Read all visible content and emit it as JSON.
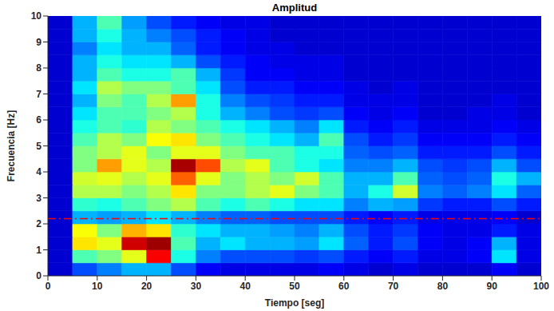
{
  "chart_data": {
    "type": "heatmap",
    "title": "Amplitud",
    "x_label": "Tiempo [seg]",
    "y_label": "Frecuencia [Hz]",
    "xlim": [
      0,
      100
    ],
    "ylim": [
      0,
      10
    ],
    "xticks": [
      0,
      10,
      20,
      30,
      40,
      50,
      60,
      70,
      80,
      90,
      100
    ],
    "yticks": [
      0,
      1,
      2,
      3,
      4,
      5,
      6,
      7,
      8,
      9,
      10
    ],
    "grid": false,
    "color": "jet",
    "zlim": [
      0,
      1
    ],
    "x_bins": [
      0,
      5,
      10,
      15,
      20,
      25,
      30,
      35,
      40,
      45,
      50,
      55,
      60,
      65,
      70,
      75,
      80,
      85,
      90,
      95,
      100
    ],
    "y_bins": [
      0,
      0.5,
      1,
      1.5,
      2,
      2.5,
      3,
      3.5,
      4,
      4.5,
      5,
      5.5,
      6,
      6.5,
      7,
      7.5,
      8,
      8.5,
      9,
      9.5,
      10
    ],
    "cells": [
      [
        0.08,
        0.2,
        0.25,
        0.3,
        0.3,
        0.2,
        0.12,
        0.1,
        0.1,
        0.1,
        0.1,
        0.12,
        0.1,
        0.08,
        0.1,
        0.08,
        0.08,
        0.08,
        0.12,
        0.08
      ],
      [
        0.08,
        0.45,
        0.5,
        0.6,
        0.88,
        0.4,
        0.25,
        0.2,
        0.2,
        0.2,
        0.18,
        0.2,
        0.15,
        0.12,
        0.15,
        0.1,
        0.1,
        0.12,
        0.35,
        0.1
      ],
      [
        0.08,
        0.65,
        0.6,
        0.92,
        0.97,
        0.45,
        0.3,
        0.35,
        0.3,
        0.3,
        0.28,
        0.35,
        0.22,
        0.15,
        0.2,
        0.12,
        0.1,
        0.12,
        0.3,
        0.1
      ],
      [
        0.08,
        0.62,
        0.5,
        0.7,
        0.65,
        0.42,
        0.35,
        0.3,
        0.3,
        0.28,
        0.25,
        0.3,
        0.2,
        0.15,
        0.18,
        0.12,
        0.1,
        0.1,
        0.15,
        0.1
      ],
      [
        0.08,
        0.3,
        0.28,
        0.3,
        0.35,
        0.3,
        0.25,
        0.22,
        0.22,
        0.2,
        0.2,
        0.2,
        0.15,
        0.12,
        0.15,
        0.1,
        0.1,
        0.1,
        0.12,
        0.08
      ],
      [
        0.08,
        0.42,
        0.4,
        0.45,
        0.5,
        0.55,
        0.45,
        0.4,
        0.45,
        0.4,
        0.35,
        0.35,
        0.25,
        0.3,
        0.28,
        0.18,
        0.15,
        0.15,
        0.2,
        0.15
      ],
      [
        0.08,
        0.55,
        0.55,
        0.5,
        0.55,
        0.65,
        0.5,
        0.5,
        0.55,
        0.6,
        0.5,
        0.45,
        0.3,
        0.4,
        0.58,
        0.25,
        0.22,
        0.25,
        0.35,
        0.22
      ],
      [
        0.08,
        0.58,
        0.6,
        0.55,
        0.6,
        0.78,
        0.6,
        0.5,
        0.55,
        0.5,
        0.58,
        0.45,
        0.3,
        0.3,
        0.45,
        0.22,
        0.2,
        0.22,
        0.4,
        0.3
      ],
      [
        0.08,
        0.5,
        0.72,
        0.6,
        0.55,
        0.96,
        0.8,
        0.55,
        0.6,
        0.45,
        0.4,
        0.35,
        0.25,
        0.25,
        0.3,
        0.2,
        0.18,
        0.2,
        0.3,
        0.2
      ],
      [
        0.08,
        0.5,
        0.55,
        0.6,
        0.5,
        0.6,
        0.6,
        0.5,
        0.45,
        0.45,
        0.4,
        0.4,
        0.22,
        0.2,
        0.22,
        0.15,
        0.15,
        0.15,
        0.2,
        0.15
      ],
      [
        0.08,
        0.45,
        0.55,
        0.5,
        0.62,
        0.65,
        0.5,
        0.45,
        0.4,
        0.35,
        0.3,
        0.45,
        0.2,
        0.15,
        0.18,
        0.12,
        0.12,
        0.12,
        0.15,
        0.12
      ],
      [
        0.08,
        0.4,
        0.45,
        0.42,
        0.55,
        0.5,
        0.45,
        0.4,
        0.35,
        0.3,
        0.25,
        0.35,
        0.15,
        0.12,
        0.15,
        0.1,
        0.1,
        0.1,
        0.12,
        0.1
      ],
      [
        0.08,
        0.35,
        0.45,
        0.45,
        0.5,
        0.55,
        0.4,
        0.3,
        0.25,
        0.2,
        0.18,
        0.2,
        0.12,
        0.1,
        0.12,
        0.08,
        0.08,
        0.1,
        0.1,
        0.08
      ],
      [
        0.08,
        0.3,
        0.5,
        0.45,
        0.55,
        0.72,
        0.4,
        0.25,
        0.2,
        0.18,
        0.15,
        0.15,
        0.1,
        0.1,
        0.1,
        0.08,
        0.08,
        0.08,
        0.1,
        0.08
      ],
      [
        0.08,
        0.35,
        0.55,
        0.5,
        0.5,
        0.45,
        0.35,
        0.2,
        0.15,
        0.15,
        0.12,
        0.12,
        0.1,
        0.08,
        0.1,
        0.08,
        0.08,
        0.08,
        0.08,
        0.08
      ],
      [
        0.08,
        0.3,
        0.45,
        0.4,
        0.4,
        0.45,
        0.3,
        0.18,
        0.12,
        0.12,
        0.1,
        0.1,
        0.08,
        0.08,
        0.08,
        0.08,
        0.08,
        0.08,
        0.08,
        0.08
      ],
      [
        0.08,
        0.3,
        0.4,
        0.35,
        0.35,
        0.3,
        0.2,
        0.15,
        0.12,
        0.1,
        0.1,
        0.1,
        0.08,
        0.08,
        0.08,
        0.08,
        0.08,
        0.08,
        0.08,
        0.08
      ],
      [
        0.08,
        0.25,
        0.35,
        0.3,
        0.3,
        0.22,
        0.15,
        0.12,
        0.1,
        0.1,
        0.08,
        0.08,
        0.08,
        0.08,
        0.08,
        0.08,
        0.08,
        0.08,
        0.08,
        0.08
      ],
      [
        0.08,
        0.3,
        0.4,
        0.3,
        0.25,
        0.2,
        0.15,
        0.12,
        0.1,
        0.08,
        0.08,
        0.08,
        0.08,
        0.08,
        0.08,
        0.08,
        0.08,
        0.08,
        0.08,
        0.08
      ],
      [
        0.08,
        0.3,
        0.45,
        0.28,
        0.2,
        0.15,
        0.12,
        0.1,
        0.1,
        0.08,
        0.08,
        0.08,
        0.08,
        0.08,
        0.08,
        0.08,
        0.08,
        0.08,
        0.08,
        0.08
      ]
    ],
    "hlines": [
      {
        "y": 2.2,
        "color": "#ff0000",
        "line_style": "dashdot"
      }
    ]
  }
}
